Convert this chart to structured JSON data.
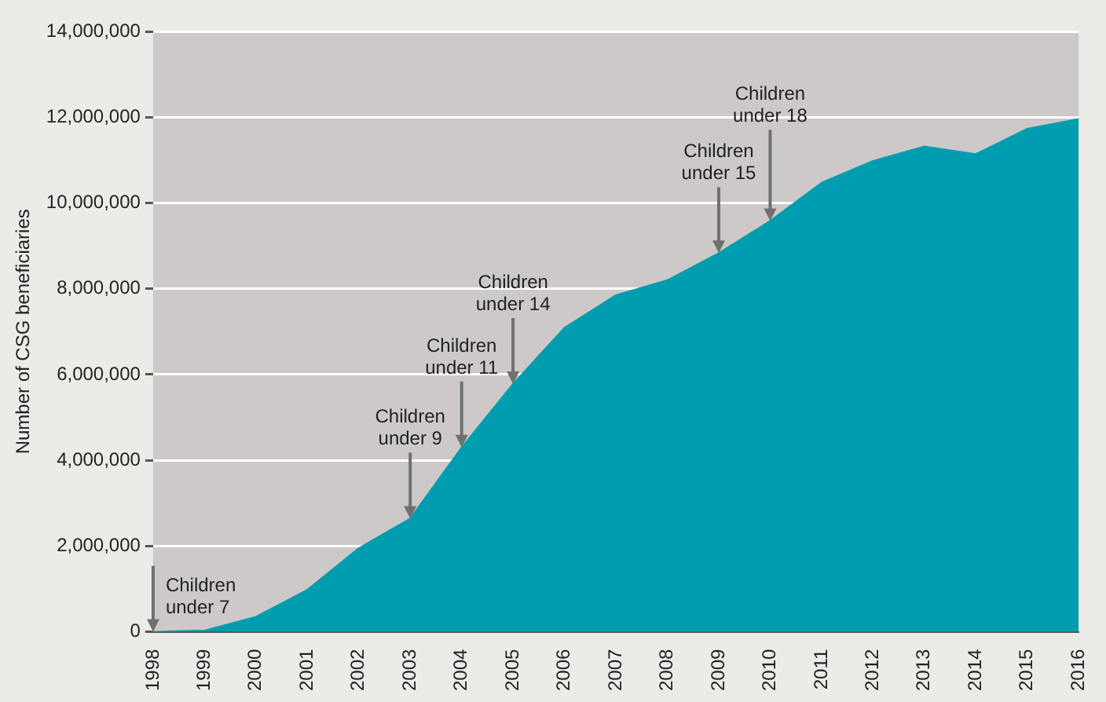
{
  "chart_data": {
    "type": "area",
    "ylabel": "Number of CSG beneficiaries",
    "categories": [
      "1998",
      "1999",
      "2000",
      "2001",
      "2002",
      "2003",
      "2004",
      "2005",
      "2006",
      "2007",
      "2008",
      "2009",
      "2010",
      "2011",
      "2012",
      "2013",
      "2014",
      "2015",
      "2016"
    ],
    "series": [
      {
        "color": "#009db0",
        "values": [
          0,
          30000,
          350000,
          980000,
          1950000,
          2640000,
          4300000,
          5780000,
          7090000,
          7850000,
          8200000,
          8830000,
          9580000,
          10470000,
          10980000,
          11320000,
          11140000,
          11730000,
          11960000
        ]
      }
    ],
    "ylim": [
      0,
      14000000
    ],
    "yticks": [
      0,
      {
        "value": 2000000,
        "label": "2,000,000"
      },
      {
        "value": 4000000,
        "label": "4,000,000"
      },
      {
        "value": 6000000,
        "label": "6,000,000"
      },
      {
        "value": 8000000,
        "label": "8,000,000"
      },
      {
        "value": 10000000,
        "label": "10,000,000"
      },
      {
        "value": 12000000,
        "label": "12,000,000"
      },
      {
        "value": 14000000,
        "label": "14,000,000"
      }
    ],
    "grid": "y",
    "legend": false,
    "annotations": [
      {
        "text": "Children under 7",
        "x": "1998",
        "y": 0
      },
      {
        "text": "Children under 9",
        "x": "2003",
        "y": 2640000
      },
      {
        "text": "Children under 11",
        "x": "2004",
        "y": 4300000
      },
      {
        "text": "Children under 14",
        "x": "2005",
        "y": 5780000
      },
      {
        "text": "Children under 15",
        "x": "2009",
        "y": 8830000
      },
      {
        "text": "Children under 18",
        "x": "2010",
        "y": 9580000
      }
    ]
  }
}
